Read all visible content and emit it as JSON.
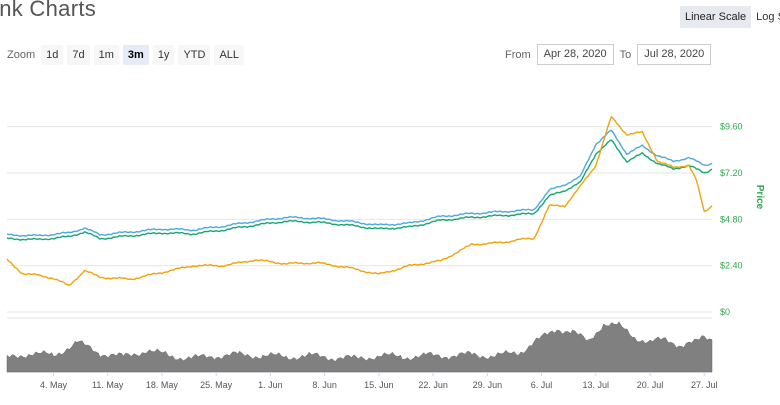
{
  "header": {
    "title": "ink Charts"
  },
  "scale": {
    "options": [
      "Linear Scale",
      "Log Sc"
    ],
    "active": 0
  },
  "zoom": {
    "label": "Zoom",
    "buttons": [
      "1d",
      "7d",
      "1m",
      "3m",
      "1y",
      "YTD",
      "ALL"
    ],
    "selected": 3
  },
  "range": {
    "from_label": "From",
    "from_value": "Apr 28, 2020",
    "to_label": "To",
    "to_value": "Jul 28, 2020"
  },
  "colors": {
    "usd": "#4da9e0",
    "eur": "#17a673",
    "btc": "#f0a30a",
    "volume": "#808080",
    "axis_text": "#2fa84f"
  },
  "chart_data": {
    "type": "line",
    "ylabel": "Price",
    "ylim": [
      0,
      11.5
    ],
    "yticks": [
      0,
      2.4,
      4.8,
      7.2,
      9.6
    ],
    "ytick_labels": [
      "$0",
      "$2.40",
      "$4.80",
      "$7.20",
      "$9.60"
    ],
    "x_start": "2020-04-28",
    "xtick_labels": [
      "4. May",
      "11. May",
      "18. May",
      "25. May",
      "1. Jun",
      "8. Jun",
      "15. Jun",
      "22. Jun",
      "29. Jun",
      "6. Jul",
      "13. Jul",
      "20. Jul",
      "27. Jul"
    ],
    "xtick_days": [
      6,
      13,
      20,
      27,
      34,
      41,
      48,
      55,
      62,
      69,
      76,
      83,
      90
    ],
    "grid": true,
    "series": [
      {
        "color": "#4da9e0",
        "days": [
          0,
          4,
          8,
          10,
          12,
          16,
          20,
          24,
          28,
          32,
          36,
          40,
          44,
          48,
          50,
          52,
          56,
          60,
          64,
          68,
          70,
          72,
          74,
          76,
          78,
          80,
          82,
          84,
          86,
          88,
          90,
          91
        ],
        "values": [
          4.0,
          3.95,
          4.1,
          4.35,
          4.0,
          4.15,
          4.3,
          4.25,
          4.45,
          4.7,
          4.9,
          4.85,
          4.7,
          4.5,
          4.55,
          4.6,
          4.95,
          5.1,
          5.2,
          5.3,
          6.3,
          6.6,
          7.0,
          8.7,
          9.4,
          8.2,
          8.6,
          8.1,
          7.8,
          8.0,
          7.6,
          7.7
        ]
      },
      {
        "color": "#17a673",
        "days": [
          0,
          4,
          8,
          10,
          12,
          16,
          20,
          24,
          28,
          32,
          36,
          40,
          44,
          48,
          50,
          52,
          56,
          60,
          64,
          68,
          70,
          72,
          74,
          76,
          78,
          80,
          82,
          84,
          86,
          88,
          90,
          91
        ],
        "values": [
          3.8,
          3.75,
          3.9,
          4.15,
          3.8,
          3.95,
          4.1,
          4.05,
          4.25,
          4.5,
          4.7,
          4.65,
          4.5,
          4.3,
          4.35,
          4.4,
          4.75,
          4.9,
          5.0,
          5.1,
          6.0,
          6.3,
          6.7,
          8.2,
          8.9,
          7.8,
          8.2,
          7.7,
          7.4,
          7.6,
          7.2,
          7.4
        ]
      },
      {
        "color": "#f0a30a",
        "days": [
          0,
          2,
          4,
          6,
          8,
          10,
          12,
          16,
          20,
          24,
          28,
          32,
          36,
          40,
          44,
          48,
          52,
          56,
          60,
          64,
          66,
          68,
          70,
          72,
          74,
          76,
          78,
          80,
          82,
          84,
          86,
          88,
          89,
          90,
          91
        ],
        "values": [
          2.7,
          2.0,
          1.9,
          1.75,
          1.35,
          2.15,
          1.8,
          1.7,
          2.05,
          2.4,
          2.4,
          2.7,
          2.5,
          2.55,
          2.3,
          1.95,
          2.4,
          2.65,
          3.5,
          3.6,
          3.75,
          3.8,
          5.5,
          5.5,
          6.5,
          7.6,
          10.1,
          9.2,
          9.3,
          7.8,
          7.5,
          7.6,
          6.8,
          5.2,
          5.5
        ]
      }
    ],
    "volume": {
      "color": "#808080",
      "days": [
        0,
        3,
        6,
        9,
        12,
        15,
        18,
        21,
        24,
        27,
        30,
        33,
        36,
        39,
        42,
        45,
        48,
        51,
        54,
        57,
        60,
        63,
        66,
        68,
        70,
        71,
        73,
        75,
        77,
        79,
        81,
        83,
        85,
        87,
        89,
        90,
        91
      ],
      "values": [
        0.25,
        0.35,
        0.3,
        0.55,
        0.35,
        0.28,
        0.4,
        0.3,
        0.25,
        0.3,
        0.32,
        0.3,
        0.28,
        0.3,
        0.27,
        0.25,
        0.3,
        0.28,
        0.3,
        0.3,
        0.32,
        0.3,
        0.35,
        0.55,
        0.7,
        0.8,
        0.75,
        0.55,
        0.9,
        0.85,
        0.65,
        0.55,
        0.6,
        0.5,
        0.55,
        0.65,
        0.6
      ]
    }
  }
}
